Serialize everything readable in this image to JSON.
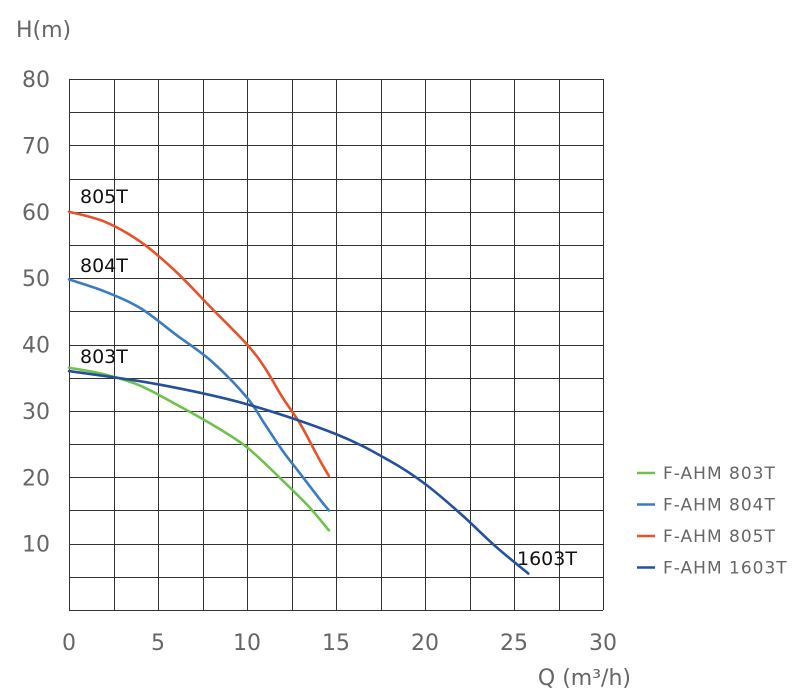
{
  "chart_data": {
    "type": "line",
    "title": "",
    "xlabel": "Q (m³/h)",
    "ylabel": "H(m)",
    "xlim": [
      0,
      30
    ],
    "ylim": [
      0,
      80
    ],
    "x_ticks": [
      0,
      5,
      10,
      15,
      20,
      25,
      30
    ],
    "x_tick_labels": [
      "0",
      "5",
      "10",
      "15",
      "20",
      "25",
      "30"
    ],
    "y_ticks": [
      10,
      20,
      30,
      40,
      50,
      60,
      70,
      80
    ],
    "y_tick_labels": [
      "10",
      "20",
      "30",
      "40",
      "50",
      "60",
      "70",
      "80"
    ],
    "grid": true,
    "legend_position": "right",
    "series": [
      {
        "name": "F-AHM 803T",
        "label": "803T",
        "color": "#6cc24a",
        "x": [
          0,
          2,
          4,
          6,
          8,
          10,
          12,
          13.5,
          14.6
        ],
        "y": [
          36.5,
          35.5,
          33.8,
          31,
          28,
          24.5,
          19.5,
          15.5,
          12
        ]
      },
      {
        "name": "F-AHM 804T",
        "label": "804T",
        "color": "#3a7cc1",
        "x": [
          0,
          2,
          4,
          6,
          8,
          10,
          11,
          12,
          13,
          14,
          14.6
        ],
        "y": [
          49.8,
          48,
          45.5,
          41.5,
          37.5,
          32,
          28,
          24,
          20.5,
          17,
          15
        ]
      },
      {
        "name": "F-AHM 805T",
        "label": "805T",
        "color": "#e8522a",
        "x": [
          0,
          2,
          4,
          6,
          8,
          10,
          11,
          12,
          13,
          14,
          14.6
        ],
        "y": [
          60,
          58.5,
          55.5,
          51,
          45.5,
          40,
          36.5,
          32,
          28,
          23,
          20.2
        ]
      },
      {
        "name": "F-AHM 1603T",
        "label": "1603T",
        "color": "#25519b",
        "x": [
          0,
          5,
          10,
          15,
          18,
          20,
          22,
          24,
          25.8
        ],
        "y": [
          36,
          34,
          31,
          26.5,
          22.5,
          19,
          14.5,
          9.5,
          5.5
        ]
      }
    ]
  }
}
